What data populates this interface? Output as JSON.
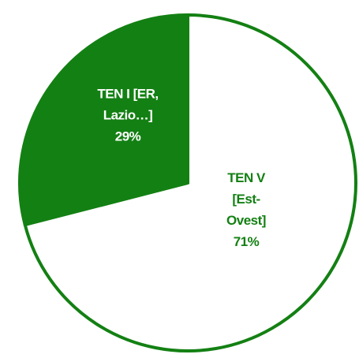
{
  "chart_data": {
    "type": "pie",
    "categories": [
      "TEN V [Est-Ovest]",
      "TEN I [ER, Lazio…]"
    ],
    "values": [
      71,
      29
    ],
    "value_labels": [
      "71%",
      "29%"
    ],
    "colors": [
      "#ffffff",
      "#138013"
    ],
    "edge_color": "#138013"
  }
}
